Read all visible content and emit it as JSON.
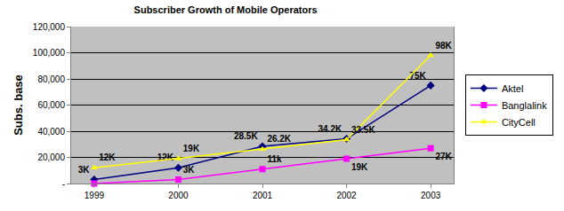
{
  "chart_data": {
    "type": "line",
    "title": "Subscriber Growth of Mobile Operators",
    "y_label": "Subs. base",
    "categories": [
      "1999",
      "2000",
      "2001",
      "2002",
      "2003"
    ],
    "series": [
      {
        "name": "Aktel",
        "color": "#000080",
        "marker": "diamond",
        "values": [
          3000,
          12000,
          28500,
          34200,
          75000
        ],
        "value_labels": [
          "3K",
          "12K",
          "28.5K",
          "34.2K",
          "75K"
        ]
      },
      {
        "name": "Banglalink",
        "color": "#FF00FF",
        "marker": "square",
        "values": [
          0,
          3000,
          11000,
          19000,
          27000
        ],
        "value_labels": [
          null,
          "3K",
          "11k",
          "19K",
          "27K"
        ]
      },
      {
        "name": "CityCell",
        "color": "#FFFF00",
        "marker": "triangle-up",
        "values": [
          12000,
          19000,
          26200,
          33500,
          98000
        ],
        "value_labels": [
          "12K",
          "19K",
          "26.2K",
          "33.5K",
          "98K"
        ]
      }
    ],
    "ylim": [
      0,
      120000
    ],
    "yticks": [
      {
        "value": 0,
        "label": "-"
      },
      {
        "value": 20000,
        "label": "20,000"
      },
      {
        "value": 40000,
        "label": "40,000"
      },
      {
        "value": 60000,
        "label": "60,000"
      },
      {
        "value": 80000,
        "label": "80,000"
      },
      {
        "value": 100000,
        "label": "100,000"
      },
      {
        "value": 120000,
        "label": "120,000"
      }
    ],
    "grid": true,
    "legend": "right",
    "data_labels": true
  }
}
